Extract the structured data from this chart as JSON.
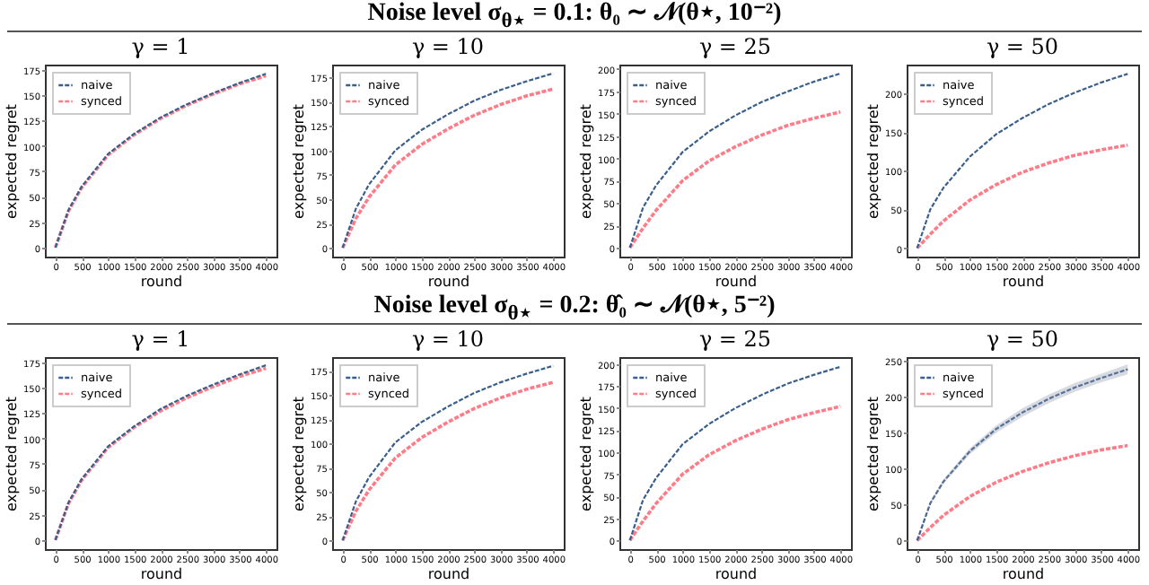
{
  "chart_data": [
    {
      "type": "line",
      "title": "γ = 1",
      "annotations": [
        "Noise level σ$_{θ⋆}$ = 0.1: θ₀ ∼ 𝒩(θ⋆, 10⁻²)"
      ],
      "xlabel": "round",
      "ylabel": "expected regret",
      "x": [
        0,
        250,
        500,
        1000,
        1500,
        2000,
        2500,
        3000,
        3500,
        4000
      ],
      "xlim": [
        -200,
        4200
      ],
      "xticks": [
        0,
        500,
        1000,
        1500,
        2000,
        2500,
        3000,
        3500,
        4000
      ],
      "ylim": [
        -9,
        180
      ],
      "yticks": [
        0,
        25,
        50,
        75,
        100,
        125,
        150,
        175
      ],
      "legend": "top left",
      "grid": false,
      "series": [
        {
          "name": "naive",
          "color": "#3a5f8c",
          "line_style": "dashed",
          "values": [
            0,
            37,
            60,
            92,
            112,
            128,
            141,
            152,
            162,
            171
          ]
        },
        {
          "name": "synced",
          "color": "#ff7b88",
          "line_style": "dashed",
          "values": [
            0,
            36,
            59,
            91,
            111,
            127,
            140,
            151,
            161,
            169
          ]
        }
      ]
    },
    {
      "type": "line",
      "title": "γ = 10",
      "xlabel": "round",
      "ylabel": "expected regret",
      "x": [
        0,
        250,
        500,
        1000,
        1500,
        2000,
        2500,
        3000,
        3500,
        4000
      ],
      "xlim": [
        -200,
        4200
      ],
      "xticks": [
        0,
        500,
        1000,
        1500,
        2000,
        2500,
        3000,
        3500,
        4000
      ],
      "ylim": [
        -9,
        188
      ],
      "yticks": [
        0,
        25,
        50,
        75,
        100,
        125,
        150,
        175
      ],
      "legend": "top left",
      "grid": false,
      "series": [
        {
          "name": "naive",
          "color": "#3a5f8c",
          "line_style": "dashed",
          "values": [
            0,
            40,
            65,
            100,
            121,
            137,
            151,
            162,
            171,
            179
          ]
        },
        {
          "name": "synced",
          "color": "#ff7b88",
          "line_style": "dashed",
          "values": [
            0,
            30,
            52,
            85,
            106,
            122,
            136,
            147,
            156,
            163
          ]
        }
      ]
    },
    {
      "type": "line",
      "title": "γ = 25",
      "xlabel": "round",
      "ylabel": "expected regret",
      "x": [
        0,
        250,
        500,
        1000,
        1500,
        2000,
        2500,
        3000,
        3500,
        4000
      ],
      "xlim": [
        -200,
        4200
      ],
      "xticks": [
        0,
        500,
        1000,
        1500,
        2000,
        2500,
        3000,
        3500,
        4000
      ],
      "ylim": [
        -10,
        205
      ],
      "yticks": [
        0,
        25,
        50,
        75,
        100,
        125,
        150,
        175,
        200
      ],
      "legend": "top left",
      "grid": false,
      "series": [
        {
          "name": "naive",
          "color": "#3a5f8c",
          "line_style": "dashed",
          "values": [
            0,
            45,
            70,
            107,
            130,
            148,
            163,
            175,
            186,
            195
          ]
        },
        {
          "name": "synced",
          "color": "#ff7b88",
          "line_style": "dashed",
          "values": [
            0,
            22,
            42,
            75,
            97,
            113,
            126,
            137,
            145,
            152
          ]
        }
      ]
    },
    {
      "type": "line",
      "title": "γ = 50",
      "xlabel": "round",
      "ylabel": "expected regret",
      "x": [
        0,
        250,
        500,
        1000,
        1500,
        2000,
        2500,
        3000,
        3500,
        4000
      ],
      "xlim": [
        -200,
        4200
      ],
      "xticks": [
        0,
        500,
        1000,
        1500,
        2000,
        2500,
        3000,
        3500,
        4000
      ],
      "ylim": [
        -11,
        237
      ],
      "yticks": [
        0,
        50,
        100,
        150,
        200
      ],
      "legend": "top left",
      "grid": false,
      "series": [
        {
          "name": "naive",
          "color": "#3a5f8c",
          "line_style": "dashed",
          "values": [
            0,
            50,
            78,
            118,
            147,
            168,
            186,
            201,
            214,
            225
          ]
        },
        {
          "name": "synced",
          "color": "#ff7b88",
          "line_style": "dashed",
          "values": [
            0,
            18,
            35,
            62,
            82,
            98,
            110,
            120,
            127,
            133
          ]
        }
      ]
    },
    {
      "type": "line",
      "title": "γ = 1",
      "annotations": [
        "Noise level σ$_{θ⋆}$ = 0.2: θ̂₀ ∼ 𝒩(θ⋆, 5⁻²)"
      ],
      "xlabel": "round",
      "ylabel": "expected regret",
      "x": [
        0,
        250,
        500,
        1000,
        1500,
        2000,
        2500,
        3000,
        3500,
        4000
      ],
      "xlim": [
        -200,
        4200
      ],
      "xticks": [
        0,
        500,
        1000,
        1500,
        2000,
        2500,
        3000,
        3500,
        4000
      ],
      "ylim": [
        -9,
        180
      ],
      "yticks": [
        0,
        25,
        50,
        75,
        100,
        125,
        150,
        175
      ],
      "legend": "top left",
      "grid": false,
      "series": [
        {
          "name": "naive",
          "color": "#3a5f8c",
          "line_style": "dashed",
          "values": [
            0,
            37,
            60,
            92,
            112,
            129,
            142,
            153,
            163,
            172
          ]
        },
        {
          "name": "synced",
          "color": "#ff7b88",
          "line_style": "dashed",
          "values": [
            0,
            36,
            59,
            91,
            111,
            127,
            140,
            151,
            161,
            169
          ]
        }
      ]
    },
    {
      "type": "line",
      "title": "γ = 10",
      "xlabel": "round",
      "ylabel": "expected regret",
      "x": [
        0,
        250,
        500,
        1000,
        1500,
        2000,
        2500,
        3000,
        3500,
        4000
      ],
      "xlim": [
        -200,
        4200
      ],
      "xticks": [
        0,
        500,
        1000,
        1500,
        2000,
        2500,
        3000,
        3500,
        4000
      ],
      "ylim": [
        -9,
        189
      ],
      "yticks": [
        0,
        25,
        50,
        75,
        100,
        125,
        150,
        175
      ],
      "legend": "top left",
      "grid": false,
      "series": [
        {
          "name": "naive",
          "color": "#3a5f8c",
          "line_style": "dashed",
          "values": [
            0,
            40,
            65,
            101,
            122,
            138,
            152,
            163,
            172,
            180
          ]
        },
        {
          "name": "synced",
          "color": "#ff7b88",
          "line_style": "dashed",
          "values": [
            0,
            30,
            52,
            85,
            106,
            122,
            136,
            147,
            156,
            163
          ]
        }
      ]
    },
    {
      "type": "line",
      "title": "γ = 25",
      "xlabel": "round",
      "ylabel": "expected regret",
      "x": [
        0,
        250,
        500,
        1000,
        1500,
        2000,
        2500,
        3000,
        3500,
        4000
      ],
      "xlim": [
        -200,
        4200
      ],
      "xticks": [
        0,
        500,
        1000,
        1500,
        2000,
        2500,
        3000,
        3500,
        4000
      ],
      "ylim": [
        -10,
        208
      ],
      "yticks": [
        0,
        25,
        50,
        75,
        100,
        125,
        150,
        175,
        200
      ],
      "legend": "top left",
      "grid": false,
      "series": [
        {
          "name": "naive",
          "color": "#3a5f8c",
          "line_style": "dashed",
          "values": [
            0,
            46,
            71,
            109,
            132,
            150,
            165,
            178,
            188,
            197
          ]
        },
        {
          "name": "synced",
          "color": "#ff7b88",
          "line_style": "dashed",
          "values": [
            0,
            22,
            42,
            75,
            97,
            113,
            126,
            137,
            145,
            152
          ]
        }
      ]
    },
    {
      "type": "line",
      "title": "γ = 50",
      "xlabel": "round",
      "ylabel": "expected regret",
      "x": [
        0,
        250,
        500,
        1000,
        1500,
        2000,
        2500,
        3000,
        3500,
        4000
      ],
      "xlim": [
        -200,
        4200
      ],
      "xticks": [
        0,
        500,
        1000,
        1500,
        2000,
        2500,
        3000,
        3500,
        4000
      ],
      "ylim": [
        -12,
        255
      ],
      "yticks": [
        0,
        50,
        100,
        150,
        200,
        250
      ],
      "legend": "top left",
      "grid": false,
      "series": [
        {
          "name": "naive",
          "color": "#3a5f8c",
          "line_style": "dashed",
          "values": [
            0,
            52,
            82,
            124,
            155,
            178,
            197,
            213,
            226,
            238
          ],
          "lower": [
            0,
            50,
            79,
            120,
            150,
            172,
            191,
            207,
            220,
            231
          ],
          "upper": [
            0,
            54,
            85,
            128,
            160,
            184,
            203,
            219,
            232,
            245
          ]
        },
        {
          "name": "synced",
          "color": "#ff7b88",
          "line_style": "dashed",
          "values": [
            0,
            18,
            35,
            61,
            81,
            96,
            108,
            118,
            126,
            132
          ]
        }
      ]
    }
  ]
}
